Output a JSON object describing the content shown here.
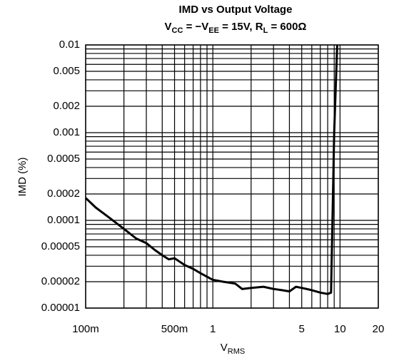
{
  "chart_data": {
    "type": "line",
    "title": "IMD vs Output Voltage",
    "subtitle": [
      {
        "text": "V"
      },
      {
        "text": "CC",
        "sub": true
      },
      {
        "text": " = −V"
      },
      {
        "text": "EE",
        "sub": true
      },
      {
        "text": " = 15V, R"
      },
      {
        "text": "L",
        "sub": true
      },
      {
        "text": " = 600Ω"
      }
    ],
    "x_label": [
      {
        "text": "V"
      },
      {
        "text": "RMS",
        "sub": true
      }
    ],
    "y_label": "IMD (%)",
    "log_x": true,
    "log_y": true,
    "grid": true,
    "xlim": [
      0.1,
      20
    ],
    "ylim": [
      1e-05,
      0.01
    ],
    "xticks": [
      {
        "value": 0.1,
        "label": "100m"
      },
      {
        "value": 0.5,
        "label": "500m"
      },
      1,
      5,
      10,
      20
    ],
    "xminorticks": [
      0.2,
      0.3,
      0.4,
      0.6,
      0.7,
      0.8,
      0.9,
      2,
      3,
      4,
      6,
      7,
      8,
      9
    ],
    "yticks": [
      1e-05,
      2e-05,
      5e-05,
      0.0001,
      0.0002,
      0.0005,
      0.001,
      0.002,
      0.005,
      0.01
    ],
    "yminorticks": [
      3e-05,
      4e-05,
      6e-05,
      7e-05,
      8e-05,
      9e-05,
      0.0003,
      0.0004,
      0.0006,
      0.0007,
      0.0008,
      0.0009,
      0.003,
      0.004,
      0.006,
      0.007,
      0.008,
      0.009
    ],
    "series": [
      {
        "color": "#000000",
        "x": [
          0.1,
          0.12,
          0.15,
          0.2,
          0.25,
          0.3,
          0.35,
          0.4,
          0.45,
          0.5,
          0.6,
          0.7,
          0.8,
          1,
          1.2,
          1.5,
          1.7,
          2,
          2.5,
          3,
          3.5,
          4,
          4.5,
          5,
          6,
          7,
          8,
          8.5,
          9,
          9.5
        ],
        "values": [
          0.00018,
          0.00014,
          0.00011,
          8e-05,
          6.2e-05,
          5.5e-05,
          4.6e-05,
          4e-05,
          3.6e-05,
          3.7e-05,
          3.1e-05,
          2.8e-05,
          2.5e-05,
          2.1e-05,
          2e-05,
          1.9e-05,
          1.65e-05,
          1.7e-05,
          1.75e-05,
          1.65e-05,
          1.6e-05,
          1.55e-05,
          1.75e-05,
          1.7e-05,
          1.6e-05,
          1.5e-05,
          1.45e-05,
          1.5e-05,
          0.001,
          0.01
        ]
      }
    ]
  }
}
